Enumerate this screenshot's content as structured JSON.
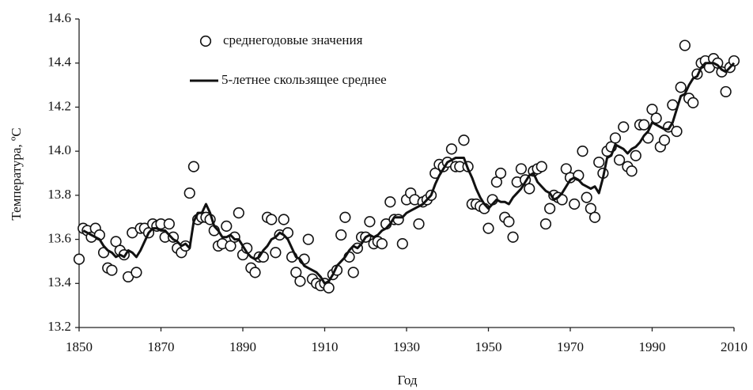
{
  "chart_data": {
    "type": "scatter",
    "xlabel": "Год",
    "ylabel": "Температура, ºС",
    "xlim": [
      1850,
      2010
    ],
    "ylim": [
      13.2,
      14.6
    ],
    "xticks": [
      1850,
      1870,
      1890,
      1910,
      1930,
      1950,
      1970,
      1990,
      2010
    ],
    "yticks": [
      13.2,
      13.4,
      13.6,
      13.8,
      {
        "value": 14,
        "label": "14.0"
      },
      14.2,
      14.4,
      14.6
    ],
    "legend": "top-left",
    "x": [
      1850,
      1851,
      1852,
      1853,
      1854,
      1855,
      1856,
      1857,
      1858,
      1859,
      1860,
      1861,
      1862,
      1863,
      1864,
      1865,
      1866,
      1867,
      1868,
      1869,
      1870,
      1871,
      1872,
      1873,
      1874,
      1875,
      1876,
      1877,
      1878,
      1879,
      1880,
      1881,
      1882,
      1883,
      1884,
      1885,
      1886,
      1887,
      1888,
      1889,
      1890,
      1891,
      1892,
      1893,
      1894,
      1895,
      1896,
      1897,
      1898,
      1899,
      1900,
      1901,
      1902,
      1903,
      1904,
      1905,
      1906,
      1907,
      1908,
      1909,
      1910,
      1911,
      1912,
      1913,
      1914,
      1915,
      1916,
      1917,
      1918,
      1919,
      1920,
      1921,
      1922,
      1923,
      1924,
      1925,
      1926,
      1927,
      1928,
      1929,
      1930,
      1931,
      1932,
      1933,
      1934,
      1935,
      1936,
      1937,
      1938,
      1939,
      1940,
      1941,
      1942,
      1943,
      1944,
      1945,
      1946,
      1947,
      1948,
      1949,
      1950,
      1951,
      1952,
      1953,
      1954,
      1955,
      1956,
      1957,
      1958,
      1959,
      1960,
      1961,
      1962,
      1963,
      1964,
      1965,
      1966,
      1967,
      1968,
      1969,
      1970,
      1971,
      1972,
      1973,
      1974,
      1975,
      1976,
      1977,
      1978,
      1979,
      1980,
      1981,
      1982,
      1983,
      1984,
      1985,
      1986,
      1987,
      1988,
      1989,
      1990,
      1991,
      1992,
      1993,
      1994,
      1995,
      1996,
      1997,
      1998,
      1999,
      2000,
      2001,
      2002,
      2003,
      2004,
      2005,
      2006,
      2007,
      2008,
      2009,
      2010
    ],
    "series": [
      {
        "name": "среднегодовые значения",
        "type": "scatter",
        "color": "#111111",
        "values": [
          13.51,
          13.65,
          13.64,
          13.61,
          13.65,
          13.62,
          13.54,
          13.47,
          13.46,
          13.59,
          13.55,
          13.53,
          13.43,
          13.63,
          13.45,
          13.65,
          13.65,
          13.63,
          13.67,
          13.66,
          13.67,
          13.61,
          13.67,
          13.61,
          13.56,
          13.54,
          13.57,
          13.81,
          13.93,
          13.69,
          13.7,
          13.7,
          13.69,
          13.64,
          13.57,
          13.58,
          13.66,
          13.57,
          13.61,
          13.72,
          13.53,
          13.56,
          13.47,
          13.45,
          13.52,
          13.52,
          13.7,
          13.69,
          13.54,
          13.62,
          13.69,
          13.63,
          13.52,
          13.45,
          13.41,
          13.51,
          13.6,
          13.42,
          13.4,
          13.39,
          13.4,
          13.38,
          13.44,
          13.46,
          13.62,
          13.7,
          13.52,
          13.45,
          13.56,
          13.61,
          13.61,
          13.68,
          13.58,
          13.59,
          13.58,
          13.67,
          13.77,
          13.69,
          13.69,
          13.58,
          13.78,
          13.81,
          13.78,
          13.67,
          13.77,
          13.78,
          13.8,
          13.9,
          13.94,
          13.93,
          13.95,
          14.01,
          13.93,
          13.93,
          14.05,
          13.93,
          13.76,
          13.76,
          13.75,
          13.74,
          13.65,
          13.78,
          13.86,
          13.9,
          13.7,
          13.68,
          13.61,
          13.86,
          13.92,
          13.87,
          13.83,
          13.91,
          13.92,
          13.93,
          13.67,
          13.74,
          13.8,
          13.79,
          13.78,
          13.92,
          13.88,
          13.76,
          13.89,
          14.0,
          13.79,
          13.74,
          13.7,
          13.95,
          13.9,
          14.0,
          14.02,
          14.06,
          13.96,
          14.11,
          13.93,
          13.91,
          13.98,
          14.12,
          14.12,
          14.06,
          14.19,
          14.15,
          14.02,
          14.05,
          14.11,
          14.21,
          14.09,
          14.29,
          14.48,
          14.24,
          14.22,
          14.35,
          14.4,
          14.41,
          14.38,
          14.42,
          14.4,
          14.36,
          14.27,
          14.38,
          14.41
        ]
      },
      {
        "name": "5-летнее скользящее среднее",
        "type": "line",
        "color": "#111111",
        "values": [
          null,
          13.64,
          13.63,
          13.62,
          13.61,
          13.6,
          13.57,
          13.55,
          13.54,
          13.52,
          13.53,
          13.52,
          13.55,
          13.54,
          13.52,
          13.55,
          13.59,
          13.63,
          13.65,
          13.65,
          13.64,
          13.64,
          13.62,
          13.6,
          13.59,
          13.57,
          13.58,
          13.56,
          13.68,
          13.72,
          13.72,
          13.76,
          13.72,
          13.66,
          13.64,
          13.61,
          13.61,
          13.62,
          13.6,
          13.6,
          13.57,
          13.54,
          13.52,
          13.51,
          13.52,
          13.55,
          13.57,
          13.6,
          13.61,
          13.63,
          13.62,
          13.6,
          13.56,
          13.52,
          13.51,
          13.48,
          13.47,
          13.46,
          13.45,
          13.43,
          13.4,
          13.41,
          13.44,
          13.48,
          13.5,
          13.52,
          13.55,
          13.57,
          13.56,
          13.58,
          13.61,
          13.62,
          13.61,
          13.62,
          13.64,
          13.65,
          13.67,
          13.7,
          13.7,
          13.7,
          13.72,
          13.73,
          13.74,
          13.75,
          13.76,
          13.78,
          13.8,
          13.85,
          13.89,
          13.92,
          13.95,
          13.96,
          13.97,
          13.97,
          13.97,
          13.92,
          13.88,
          13.83,
          13.79,
          13.76,
          13.74,
          13.76,
          13.78,
          13.77,
          13.77,
          13.76,
          13.79,
          13.81,
          13.83,
          13.86,
          13.89,
          13.9,
          13.86,
          13.84,
          13.82,
          13.81,
          13.78,
          13.79,
          13.81,
          13.84,
          13.87,
          13.88,
          13.87,
          13.85,
          13.84,
          13.83,
          13.84,
          13.81,
          13.88,
          13.97,
          13.98,
          14.03,
          14.02,
          14.01,
          13.99,
          14.01,
          14.02,
          14.04,
          14.07,
          14.09,
          14.13,
          14.12,
          14.11,
          14.1,
          14.1,
          14.13,
          14.19,
          14.25,
          14.26,
          14.3,
          14.33,
          14.34,
          14.38,
          14.4,
          14.4,
          14.4,
          14.39,
          14.37,
          14.36,
          14.38,
          14.4
        ]
      }
    ]
  }
}
